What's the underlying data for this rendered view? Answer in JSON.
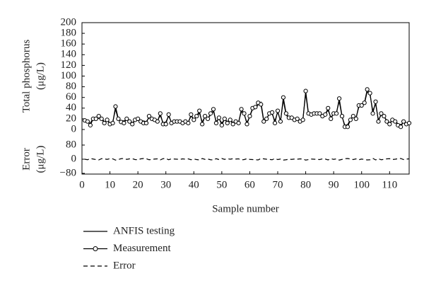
{
  "chart_data": [
    {
      "type": "line",
      "ylabel": [
        "Total phosphorus",
        "(μg/L)"
      ],
      "xlim": [
        0,
        117
      ],
      "ylim": [
        0,
        200
      ],
      "yticks": [
        0,
        20,
        40,
        60,
        80,
        100,
        120,
        140,
        160,
        180,
        200
      ],
      "x": [
        1,
        2,
        3,
        4,
        5,
        6,
        7,
        8,
        9,
        10,
        11,
        12,
        13,
        14,
        15,
        16,
        17,
        18,
        19,
        20,
        21,
        22,
        23,
        24,
        25,
        26,
        27,
        28,
        29,
        30,
        31,
        32,
        33,
        34,
        35,
        36,
        37,
        38,
        39,
        40,
        41,
        42,
        43,
        44,
        45,
        46,
        47,
        48,
        49,
        50,
        51,
        52,
        53,
        54,
        55,
        56,
        57,
        58,
        59,
        60,
        61,
        62,
        63,
        64,
        65,
        66,
        67,
        68,
        69,
        70,
        71,
        72,
        73,
        74,
        75,
        76,
        77,
        78,
        79,
        80,
        81,
        82,
        83,
        84,
        85,
        86,
        87,
        88,
        89,
        90,
        91,
        92,
        93,
        94,
        95,
        96,
        97,
        98,
        99,
        100,
        101,
        102,
        103,
        104,
        105,
        106,
        107,
        108,
        109,
        110,
        111,
        112,
        113,
        114,
        115,
        116,
        117
      ],
      "series": [
        {
          "name": "ANFIS testing",
          "color": "#000000",
          "marker": false,
          "dash": false,
          "values": [
            17,
            12,
            12,
            21,
            18,
            21,
            23,
            14,
            17,
            13,
            14,
            38,
            18,
            17,
            16,
            19,
            17,
            13,
            16,
            17,
            17,
            16,
            15,
            22,
            19,
            19,
            17,
            26,
            13,
            14,
            25,
            14,
            16,
            15,
            14,
            14,
            15,
            14,
            25,
            19,
            23,
            31,
            14,
            24,
            21,
            27,
            34,
            15,
            20,
            12,
            19,
            15,
            18,
            13,
            16,
            14,
            34,
            28,
            13,
            24,
            38,
            39,
            46,
            51,
            17,
            20,
            29,
            29,
            16,
            33,
            16,
            55,
            27,
            22,
            21,
            19,
            20,
            17,
            19,
            67,
            28,
            29,
            30,
            29,
            28,
            27,
            29,
            36,
            23,
            29,
            32,
            53,
            24,
            8,
            9,
            19,
            23,
            22,
            42,
            46,
            48,
            71,
            65,
            35,
            48,
            18,
            27,
            24,
            17,
            13,
            16,
            15,
            11,
            9,
            13,
            11,
            14
          ]
        },
        {
          "name": "Measurement",
          "color": "#000000",
          "marker": true,
          "dash": false,
          "values": [
            17,
            15,
            8,
            20,
            20,
            25,
            20,
            12,
            18,
            10,
            12,
            43,
            20,
            14,
            12,
            20,
            15,
            10,
            18,
            20,
            15,
            12,
            12,
            25,
            20,
            18,
            15,
            30,
            10,
            10,
            28,
            12,
            15,
            15,
            15,
            12,
            15,
            12,
            28,
            18,
            25,
            35,
            10,
            25,
            20,
            30,
            38,
            12,
            22,
            8,
            20,
            12,
            18,
            10,
            15,
            12,
            38,
            30,
            10,
            25,
            40,
            42,
            50,
            47,
            15,
            20,
            30,
            32,
            12,
            35,
            15,
            60,
            30,
            22,
            22,
            18,
            20,
            15,
            18,
            72,
            30,
            28,
            30,
            30,
            30,
            25,
            28,
            40,
            20,
            30,
            30,
            58,
            25,
            5,
            5,
            18,
            25,
            20,
            45,
            45,
            50,
            75,
            68,
            30,
            52,
            15,
            30,
            25,
            15,
            10,
            18,
            15,
            8,
            5,
            15,
            10,
            12
          ]
        }
      ]
    },
    {
      "type": "line",
      "ylabel": [
        "Error",
        "(μg/L)"
      ],
      "xlabel": "Sample number",
      "xlim": [
        0,
        117
      ],
      "ylim": [
        -80,
        80
      ],
      "xticks": [
        0,
        10,
        20,
        30,
        40,
        50,
        60,
        70,
        80,
        90,
        100,
        110
      ],
      "yticks": [
        {
          "value": -80,
          "label": "−80"
        },
        0,
        80
      ],
      "x": [
        1,
        2,
        3,
        4,
        5,
        6,
        7,
        8,
        9,
        10,
        11,
        12,
        13,
        14,
        15,
        16,
        17,
        18,
        19,
        20,
        21,
        22,
        23,
        24,
        25,
        26,
        27,
        28,
        29,
        30,
        31,
        32,
        33,
        34,
        35,
        36,
        37,
        38,
        39,
        40,
        41,
        42,
        43,
        44,
        45,
        46,
        47,
        48,
        49,
        50,
        51,
        52,
        53,
        54,
        55,
        56,
        57,
        58,
        59,
        60,
        61,
        62,
        63,
        64,
        65,
        66,
        67,
        68,
        69,
        70,
        71,
        72,
        73,
        74,
        75,
        76,
        77,
        78,
        79,
        80,
        81,
        82,
        83,
        84,
        85,
        86,
        87,
        88,
        89,
        90,
        91,
        92,
        93,
        94,
        95,
        96,
        97,
        98,
        99,
        100,
        101,
        102,
        103,
        104,
        105,
        106,
        107,
        108,
        109,
        110,
        111,
        112,
        113,
        114,
        115,
        116,
        117
      ],
      "series": [
        {
          "name": "Error",
          "color": "#000000",
          "marker": false,
          "dash": true,
          "values": [
            0,
            -3,
            4,
            1,
            -2,
            -4,
            3,
            2,
            -1,
            3,
            2,
            -5,
            -2,
            3,
            4,
            -1,
            2,
            3,
            -2,
            -3,
            2,
            4,
            3,
            -3,
            -1,
            1,
            2,
            -4,
            3,
            4,
            -3,
            2,
            1,
            0,
            -1,
            2,
            0,
            2,
            -3,
            1,
            -2,
            -4,
            4,
            -1,
            1,
            -3,
            -4,
            3,
            -2,
            4,
            -1,
            3,
            0,
            3,
            1,
            2,
            -4,
            -2,
            3,
            -1,
            -2,
            -3,
            -4,
            4,
            2,
            0,
            -1,
            -3,
            4,
            -2,
            1,
            -5,
            -3,
            0,
            -1,
            1,
            0,
            2,
            1,
            -5,
            -2,
            1,
            0,
            -1,
            -2,
            2,
            1,
            -4,
            3,
            -1,
            2,
            -5,
            -1,
            3,
            4,
            1,
            -2,
            2,
            -3,
            1,
            -2,
            -4,
            -3,
            5,
            -4,
            3,
            -3,
            -1,
            2,
            3,
            -2,
            0,
            3,
            4,
            -2,
            1,
            2
          ]
        }
      ]
    }
  ]
}
